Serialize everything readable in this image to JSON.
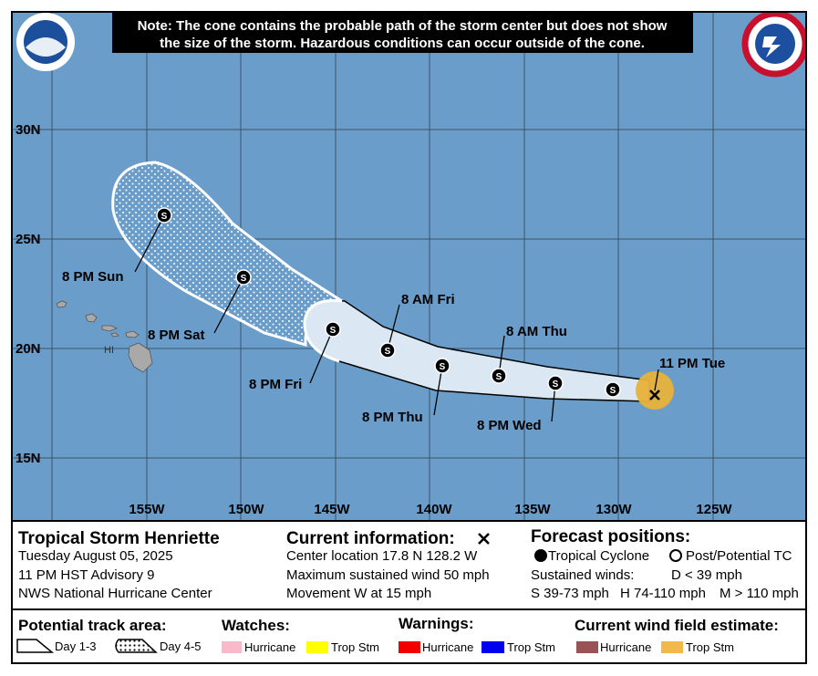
{
  "note": [
    "Note: The cone contains the probable path of the storm center but does not show",
    "the size of the storm. Hazardous conditions can occur outside of the cone."
  ],
  "map": {
    "lat_labels": [
      "30N",
      "25N",
      "20N",
      "15N"
    ],
    "lon_labels": [
      "155W",
      "150W",
      "145W",
      "140W",
      "135W",
      "130W",
      "125W"
    ],
    "island_label": "HI",
    "point_symbol": "S",
    "forecast_labels": [
      "11 PM Tue",
      "8 AM Thu",
      "8 PM Wed",
      "8 PM Thu",
      "8 AM Fri",
      "8 PM Fri",
      "8 PM Sat",
      "8 PM Sun"
    ]
  },
  "storm": {
    "title": "Tropical Storm Henriette",
    "date": "Tuesday August 05, 2025",
    "advisory": "11 PM HST Advisory 9",
    "center": "NWS National Hurricane Center"
  },
  "current": {
    "heading": "Current information:",
    "lines": [
      "Center location 17.8 N 128.2 W",
      "Maximum sustained wind 50 mph",
      "Movement W at 15 mph"
    ]
  },
  "forecast": {
    "heading": "Forecast positions:",
    "tropical": "Tropical Cyclone",
    "post": "Post/Potential TC",
    "winds_label": "Sustained winds:",
    "d": "D < 39 mph",
    "s": "S 39-73 mph",
    "h": "H 74-110 mph",
    "m": "M > 110 mph"
  },
  "legend": {
    "track_heading": "Potential track area:",
    "day13": "Day 1-3",
    "day45": "Day 4-5",
    "watches_heading": "Watches:",
    "watch_hurricane": "Hurricane",
    "watch_tropstm": "Trop Stm",
    "warnings_heading": "Warnings:",
    "warn_hurricane": "Hurricane",
    "warn_tropstm": "Trop Stm",
    "wind_heading": "Current wind field estimate:",
    "wind_hurricane": "Hurricane",
    "wind_tropstm": "Trop Stm"
  }
}
